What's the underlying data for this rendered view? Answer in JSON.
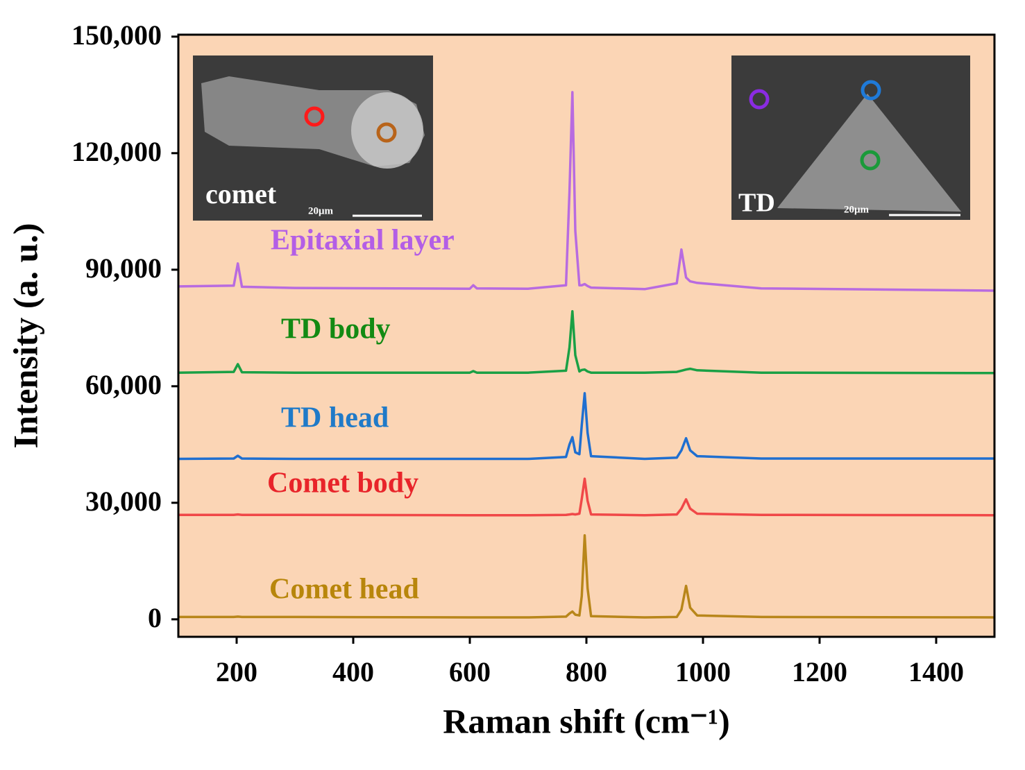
{
  "chart_data": {
    "type": "line",
    "x_label": "Raman shift (cm⁻¹)",
    "y_label": "Intensity (a. u.)",
    "annotations": [
      "comet",
      "20μm",
      "TD",
      "20μm"
    ],
    "x": [
      100,
      195,
      202,
      209,
      300,
      600,
      606,
      612,
      700,
      765,
      771,
      776,
      781,
      788,
      792,
      797,
      802,
      808,
      900,
      955,
      963,
      971,
      978,
      990,
      1100,
      1500
    ],
    "series": [
      {
        "name": "Comet head",
        "color": "#b8861a",
        "values": [
          600,
          600,
          700,
          600,
          600,
          500,
          500,
          500,
          500,
          700,
          1500,
          2000,
          1200,
          1000,
          6000,
          21600,
          8000,
          800,
          500,
          600,
          2500,
          8600,
          3000,
          1000,
          600,
          500
        ]
      },
      {
        "name": "Comet body",
        "color": "#f04848",
        "values": [
          26900,
          26900,
          27000,
          26900,
          26900,
          26800,
          26800,
          26800,
          26800,
          26900,
          27000,
          27100,
          27000,
          27200,
          31000,
          36200,
          30500,
          27000,
          26800,
          27000,
          28500,
          30900,
          28500,
          27200,
          26900,
          26800
        ]
      },
      {
        "name": "TD head",
        "color": "#1f6fd0",
        "values": [
          41300,
          41400,
          42100,
          41400,
          41300,
          41300,
          41300,
          41300,
          41300,
          41800,
          45000,
          46900,
          43000,
          42500,
          50000,
          58200,
          48000,
          42000,
          41300,
          41600,
          43500,
          46600,
          43500,
          42000,
          41400,
          41400
        ]
      },
      {
        "name": "TD body",
        "color": "#1aa045",
        "values": [
          63500,
          63700,
          65700,
          63600,
          63500,
          63500,
          63900,
          63500,
          63500,
          64000,
          70000,
          79300,
          68000,
          63800,
          64200,
          64300,
          63800,
          63500,
          63500,
          63700,
          64000,
          64300,
          64500,
          64100,
          63500,
          63400
        ]
      },
      {
        "name": "Epitaxial layer",
        "color": "#b86be0",
        "values": [
          85700,
          85900,
          91600,
          85600,
          85300,
          85100,
          86000,
          85200,
          85100,
          86000,
          110000,
          135700,
          100000,
          86000,
          86000,
          86300,
          85800,
          85400,
          85000,
          86500,
          95200,
          88000,
          87000,
          86600,
          85200,
          84600
        ]
      }
    ],
    "label_colors": [
      "#b8860b",
      "#e8242a",
      "#1f7ac8",
      "#138a13",
      "#b35ee6"
    ],
    "plot_background": "#fbd5b5",
    "xlim": [
      100,
      1500
    ],
    "xticks": [
      200,
      400,
      600,
      800,
      1000,
      1200,
      1400
    ],
    "ylim": [
      -4500,
      150500
    ],
    "yticks": [
      0,
      {
        "value": 30000,
        "label": "30,000"
      },
      {
        "value": 60000,
        "label": "60,000"
      },
      {
        "value": 90000,
        "label": "90,000"
      },
      {
        "value": 120000,
        "label": "120,000"
      },
      {
        "value": 150000,
        "label": "150,000"
      }
    ]
  }
}
